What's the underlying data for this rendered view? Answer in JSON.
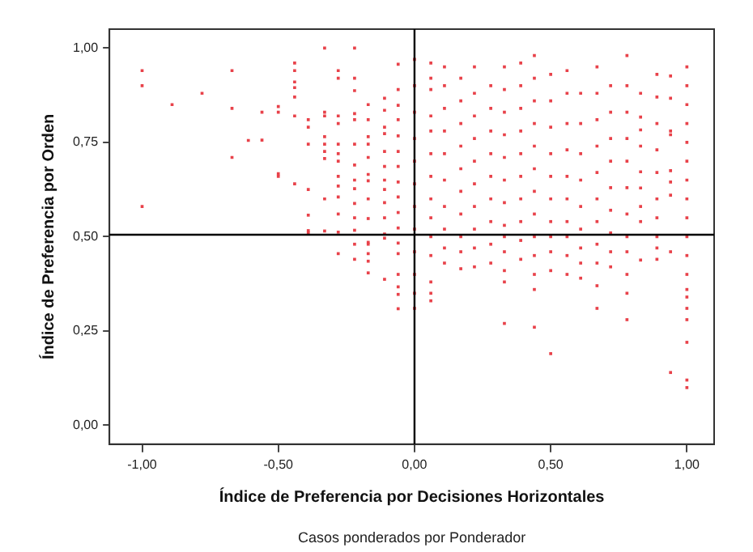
{
  "chart_data": {
    "type": "scatter",
    "xlabel": "Índice de Preferencia por Decisiones Horizontales",
    "ylabel": "Índice de Preferencia por Orden",
    "annotations": [
      "Casos ponderados por Ponderador"
    ],
    "xlim": [
      -1.12,
      1.1
    ],
    "ylim": [
      -0.05,
      1.05
    ],
    "xticks": [
      {
        "value": -1,
        "label": "-1,00"
      },
      {
        "value": -0.5,
        "label": "-0,50"
      },
      {
        "value": 0,
        "label": "0,00"
      },
      {
        "value": 0.5,
        "label": "0,50"
      },
      {
        "value": 1,
        "label": "1,00"
      }
    ],
    "yticks": [
      {
        "value": 0,
        "label": "0,00"
      },
      {
        "value": 0.25,
        "label": "0,25"
      },
      {
        "value": 0.5,
        "label": "0,50"
      },
      {
        "value": 0.75,
        "label": "0,75"
      },
      {
        "value": 1,
        "label": "1,00"
      }
    ],
    "grid": false,
    "marker": "square",
    "ref_lines": [
      {
        "axis": "x",
        "value": 0,
        "color": "#000000"
      },
      {
        "axis": "y",
        "value": 0.505,
        "color": "#000000"
      }
    ],
    "series": [
      {
        "color": "#e8424a",
        "x": [
          -1,
          -1,
          -1,
          -0.89,
          -0.78,
          -0.67,
          -0.67,
          -0.67,
          -0.61,
          -0.56,
          -0.56,
          -0.5,
          -0.5,
          -0.5,
          -0.5,
          -0.44,
          -0.44,
          -0.44,
          -0.44,
          -0.44,
          -0.44,
          -0.44,
          -0.39,
          -0.39,
          -0.39,
          -0.39,
          -0.39,
          -0.39,
          -0.39,
          -0.33,
          -0.33,
          -0.33,
          -0.33,
          -0.33,
          -0.33,
          -0.33,
          -0.33,
          -0.33,
          -0.28,
          -0.28,
          -0.28,
          -0.28,
          -0.28,
          -0.28,
          -0.28,
          -0.28,
          -0.28,
          -0.28,
          -0.28,
          -0.28,
          -0.28,
          -0.22,
          -0.22,
          -0.22,
          -0.22,
          -0.22,
          -0.22,
          -0.22,
          -0.22,
          -0.22,
          -0.22,
          -0.22,
          -0.22,
          -0.22,
          -0.22,
          -0.17,
          -0.17,
          -0.17,
          -0.17,
          -0.17,
          -0.17,
          -0.17,
          -0.17,
          -0.17,
          -0.17,
          -0.17,
          -0.17,
          -0.17,
          -0.17,
          -0.11,
          -0.11,
          -0.11,
          -0.11,
          -0.11,
          -0.11,
          -0.11,
          -0.11,
          -0.11,
          -0.11,
          -0.11,
          -0.11,
          -0.11,
          -0.06,
          -0.06,
          -0.06,
          -0.06,
          -0.06,
          -0.06,
          -0.06,
          -0.06,
          -0.06,
          -0.06,
          -0.06,
          -0.06,
          -0.06,
          -0.06,
          -0.06,
          -0.06,
          -0.06,
          0,
          0,
          0,
          0,
          0,
          0,
          0,
          0,
          0,
          0,
          0,
          0,
          0.06,
          0.06,
          0.06,
          0.06,
          0.06,
          0.06,
          0.06,
          0.06,
          0.06,
          0.06,
          0.06,
          0.06,
          0.06,
          0.06,
          0.11,
          0.11,
          0.11,
          0.11,
          0.11,
          0.11,
          0.11,
          0.11,
          0.11,
          0.11,
          0.17,
          0.17,
          0.17,
          0.17,
          0.17,
          0.17,
          0.17,
          0.17,
          0.17,
          0.17,
          0.22,
          0.22,
          0.22,
          0.22,
          0.22,
          0.22,
          0.22,
          0.22,
          0.22,
          0.22,
          0.28,
          0.28,
          0.28,
          0.28,
          0.28,
          0.28,
          0.28,
          0.28,
          0.28,
          0.33,
          0.33,
          0.33,
          0.33,
          0.33,
          0.33,
          0.33,
          0.33,
          0.33,
          0.33,
          0.33,
          0.33,
          0.33,
          0.39,
          0.39,
          0.39,
          0.39,
          0.39,
          0.39,
          0.39,
          0.39,
          0.39,
          0.39,
          0.44,
          0.44,
          0.44,
          0.44,
          0.44,
          0.44,
          0.44,
          0.44,
          0.44,
          0.44,
          0.44,
          0.44,
          0.44,
          0.5,
          0.5,
          0.5,
          0.5,
          0.5,
          0.5,
          0.5,
          0.5,
          0.5,
          0.5,
          0.5,
          0.56,
          0.56,
          0.56,
          0.56,
          0.56,
          0.56,
          0.56,
          0.56,
          0.56,
          0.56,
          0.61,
          0.61,
          0.61,
          0.61,
          0.61,
          0.61,
          0.61,
          0.61,
          0.61,
          0.67,
          0.67,
          0.67,
          0.67,
          0.67,
          0.67,
          0.67,
          0.67,
          0.67,
          0.67,
          0.67,
          0.72,
          0.72,
          0.72,
          0.72,
          0.72,
          0.72,
          0.72,
          0.72,
          0.72,
          0.78,
          0.78,
          0.78,
          0.78,
          0.78,
          0.78,
          0.78,
          0.78,
          0.78,
          0.78,
          0.78,
          0.78,
          0.83,
          0.83,
          0.83,
          0.83,
          0.83,
          0.83,
          0.83,
          0.83,
          0.83,
          0.89,
          0.89,
          0.89,
          0.89,
          0.89,
          0.89,
          0.89,
          0.89,
          0.89,
          0.89,
          0.94,
          0.94,
          0.94,
          0.94,
          0.94,
          0.94,
          0.94,
          0.94,
          0.94,
          1,
          1,
          1,
          1,
          1,
          1,
          1,
          1,
          1,
          1,
          1,
          1,
          1,
          1,
          1,
          1,
          1,
          1,
          1
        ],
        "values": [
          0.94,
          0.9,
          0.58,
          0.85,
          0.88,
          0.94,
          0.84,
          0.71,
          0.755,
          0.83,
          0.756,
          0.845,
          0.83,
          0.667,
          0.66,
          0.96,
          0.94,
          0.91,
          0.895,
          0.87,
          0.82,
          0.64,
          0.81,
          0.79,
          0.745,
          0.625,
          0.557,
          0.516,
          0.51,
          1,
          0.83,
          0.82,
          0.765,
          0.745,
          0.726,
          0.707,
          0.6,
          0.515,
          0.94,
          0.92,
          0.82,
          0.8,
          0.745,
          0.72,
          0.7,
          0.66,
          0.634,
          0.605,
          0.56,
          0.512,
          0.455,
          1,
          0.92,
          0.887,
          0.826,
          0.81,
          0.745,
          0.69,
          0.65,
          0.627,
          0.588,
          0.55,
          0.517,
          0.48,
          0.44,
          0.85,
          0.81,
          0.765,
          0.745,
          0.71,
          0.665,
          0.648,
          0.6,
          0.548,
          0.485,
          0.48,
          0.455,
          0.435,
          0.404,
          0.867,
          0.835,
          0.79,
          0.773,
          0.726,
          0.686,
          0.65,
          0.625,
          0.59,
          0.55,
          0.507,
          0.496,
          0.387,
          0.957,
          0.89,
          0.848,
          0.81,
          0.767,
          0.726,
          0.686,
          0.645,
          0.605,
          0.564,
          0.523,
          0.483,
          0.455,
          0.4,
          0.367,
          0.347,
          0.309,
          0.97,
          0.9,
          0.83,
          0.76,
          0.7,
          0.64,
          0.58,
          0.52,
          0.46,
          0.4,
          0.35,
          0.31,
          0.96,
          0.92,
          0.89,
          0.82,
          0.78,
          0.72,
          0.66,
          0.6,
          0.55,
          0.5,
          0.45,
          0.38,
          0.35,
          0.33,
          0.95,
          0.9,
          0.84,
          0.78,
          0.72,
          0.65,
          0.58,
          0.52,
          0.47,
          0.43,
          0.92,
          0.86,
          0.8,
          0.74,
          0.68,
          0.62,
          0.56,
          0.5,
          0.46,
          0.415,
          0.95,
          0.88,
          0.82,
          0.76,
          0.7,
          0.64,
          0.58,
          0.52,
          0.47,
          0.42,
          0.9,
          0.84,
          0.78,
          0.72,
          0.66,
          0.6,
          0.54,
          0.48,
          0.43,
          0.95,
          0.89,
          0.83,
          0.77,
          0.71,
          0.65,
          0.59,
          0.53,
          0.5,
          0.46,
          0.41,
          0.38,
          0.27,
          0.96,
          0.9,
          0.84,
          0.78,
          0.72,
          0.66,
          0.6,
          0.54,
          0.49,
          0.44,
          0.98,
          0.92,
          0.86,
          0.8,
          0.74,
          0.68,
          0.62,
          0.56,
          0.5,
          0.45,
          0.4,
          0.36,
          0.26,
          0.93,
          0.86,
          0.79,
          0.72,
          0.66,
          0.6,
          0.54,
          0.5,
          0.46,
          0.41,
          0.19,
          0.94,
          0.88,
          0.8,
          0.73,
          0.66,
          0.6,
          0.54,
          0.5,
          0.45,
          0.4,
          0.88,
          0.8,
          0.72,
          0.65,
          0.58,
          0.52,
          0.47,
          0.43,
          0.39,
          0.95,
          0.88,
          0.81,
          0.74,
          0.67,
          0.6,
          0.54,
          0.48,
          0.43,
          0.37,
          0.31,
          0.9,
          0.83,
          0.76,
          0.7,
          0.63,
          0.57,
          0.51,
          0.46,
          0.42,
          0.98,
          0.9,
          0.83,
          0.76,
          0.7,
          0.63,
          0.56,
          0.5,
          0.46,
          0.4,
          0.35,
          0.28,
          0.88,
          0.817,
          0.783,
          0.74,
          0.672,
          0.629,
          0.58,
          0.54,
          0.438,
          0.93,
          0.87,
          0.8,
          0.73,
          0.67,
          0.6,
          0.55,
          0.5,
          0.47,
          0.44,
          0.926,
          0.867,
          0.78,
          0.77,
          0.675,
          0.645,
          0.61,
          0.46,
          0.14,
          0.95,
          0.9,
          0.85,
          0.8,
          0.75,
          0.7,
          0.65,
          0.6,
          0.55,
          0.5,
          0.45,
          0.4,
          0.36,
          0.34,
          0.31,
          0.28,
          0.22,
          0.12,
          0.1
        ]
      }
    ]
  }
}
